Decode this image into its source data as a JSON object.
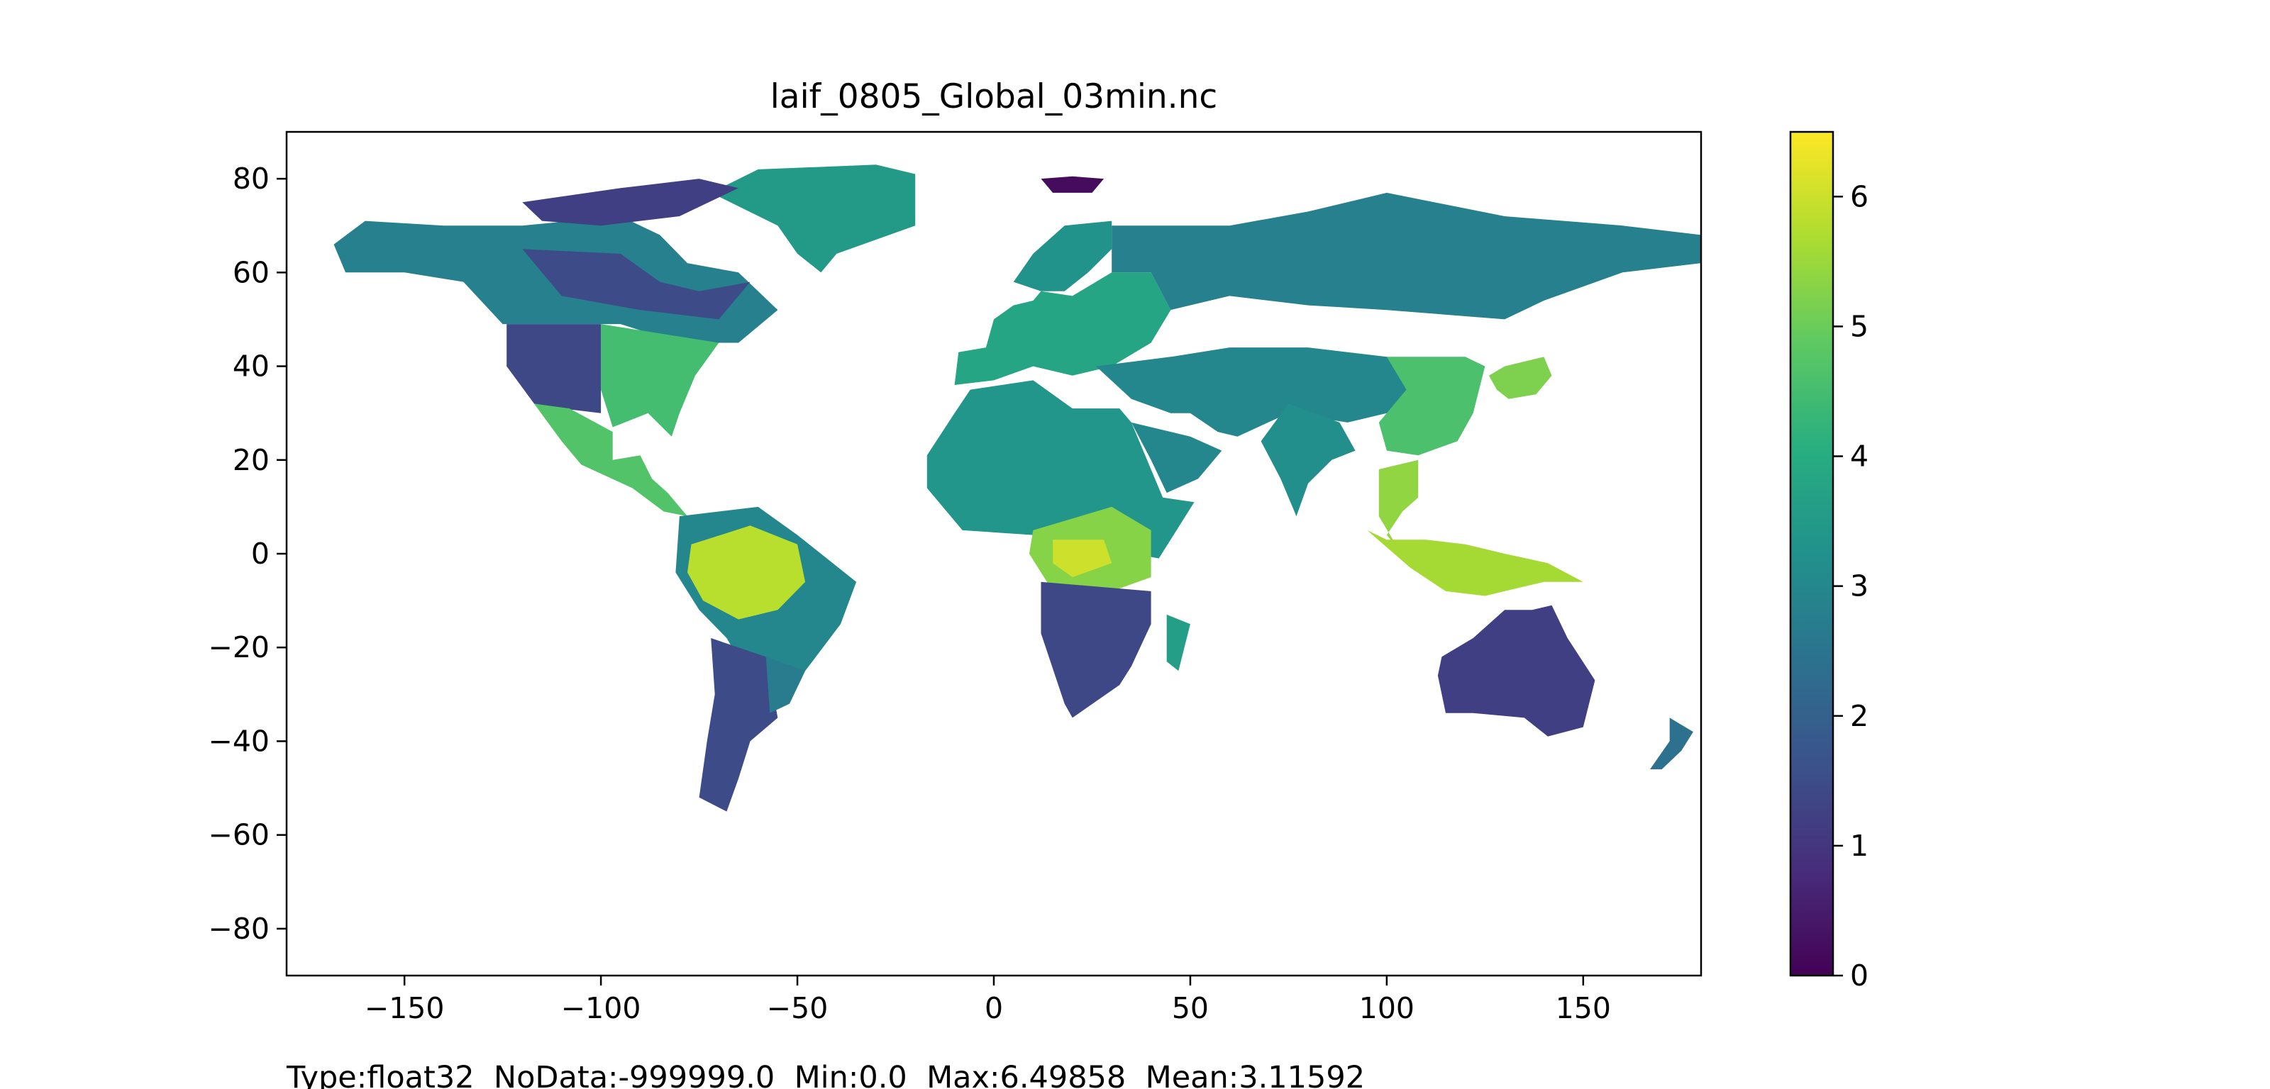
{
  "title": "laif_0805_Global_03min.nc",
  "stats_line": "Type:float32  NoData:-999999.0  Min:0.0  Max:6.49858  Mean:3.11592",
  "colorbar": {
    "colormap": "viridis",
    "min": 0,
    "max": 6.49858,
    "ticks": [
      "0",
      "1",
      "2",
      "3",
      "4",
      "5",
      "6"
    ],
    "tick_values": [
      0,
      1,
      2,
      3,
      4,
      5,
      6
    ]
  },
  "map": {
    "projection": "plate-carree",
    "xlim": [
      -180,
      180
    ],
    "ylim": [
      -90,
      90
    ],
    "x_ticks": [
      "−150",
      "−100",
      "−50",
      "0",
      "50",
      "100",
      "150"
    ],
    "x_tick_values": [
      -150,
      -100,
      -50,
      0,
      50,
      100,
      150
    ],
    "y_ticks": [
      "80",
      "60",
      "40",
      "20",
      "0",
      "−20",
      "−40",
      "−60",
      "−80"
    ],
    "y_tick_values": [
      80,
      60,
      40,
      20,
      0,
      -20,
      -40,
      -60,
      -80
    ],
    "nodata_color": "#ffffff"
  },
  "regions": [
    {
      "name": "greenland",
      "value": 3.5,
      "points": [
        [
          -60,
          82
        ],
        [
          -30,
          83
        ],
        [
          -20,
          81
        ],
        [
          -20,
          70
        ],
        [
          -40,
          64
        ],
        [
          -44,
          60
        ],
        [
          -50,
          64
        ],
        [
          -55,
          70
        ],
        [
          -72,
          77
        ]
      ]
    },
    {
      "name": "alaska-canada-north",
      "value": 2.8,
      "points": [
        [
          -168,
          66
        ],
        [
          -160,
          71
        ],
        [
          -140,
          70
        ],
        [
          -120,
          70
        ],
        [
          -95,
          72
        ],
        [
          -85,
          68
        ],
        [
          -78,
          62
        ],
        [
          -65,
          60
        ],
        [
          -55,
          52
        ],
        [
          -65,
          45
        ],
        [
          -80,
          45
        ],
        [
          -95,
          49
        ],
        [
          -125,
          49
        ],
        [
          -135,
          58
        ],
        [
          -150,
          60
        ],
        [
          -165,
          60
        ]
      ]
    },
    {
      "name": "canada-shield",
      "value": 1.5,
      "points": [
        [
          -120,
          65
        ],
        [
          -95,
          64
        ],
        [
          -85,
          58
        ],
        [
          -75,
          56
        ],
        [
          -62,
          58
        ],
        [
          -70,
          50
        ],
        [
          -90,
          52
        ],
        [
          -110,
          55
        ]
      ]
    },
    {
      "name": "canadian-arctic-islands",
      "value": 1.2,
      "points": [
        [
          -120,
          75
        ],
        [
          -95,
          78
        ],
        [
          -75,
          80
        ],
        [
          -65,
          78
        ],
        [
          -80,
          72
        ],
        [
          -100,
          70
        ],
        [
          -115,
          71
        ]
      ]
    },
    {
      "name": "usa-east",
      "value": 4.5,
      "points": [
        [
          -100,
          49
        ],
        [
          -70,
          45
        ],
        [
          -76,
          38
        ],
        [
          -80,
          30
        ],
        [
          -82,
          25
        ],
        [
          -88,
          30
        ],
        [
          -97,
          27
        ],
        [
          -100,
          35
        ]
      ]
    },
    {
      "name": "usa-west",
      "value": 1.4,
      "points": [
        [
          -124,
          49
        ],
        [
          -100,
          49
        ],
        [
          -100,
          30
        ],
        [
          -110,
          31
        ],
        [
          -117,
          32
        ],
        [
          -124,
          40
        ]
      ]
    },
    {
      "name": "mexico-central-america",
      "value": 4.7,
      "points": [
        [
          -117,
          32
        ],
        [
          -108,
          31
        ],
        [
          -97,
          26
        ],
        [
          -97,
          20
        ],
        [
          -90,
          21
        ],
        [
          -87,
          16
        ],
        [
          -83,
          13
        ],
        [
          -78,
          8
        ],
        [
          -84,
          9
        ],
        [
          -92,
          14
        ],
        [
          -105,
          19
        ],
        [
          -110,
          24
        ]
      ]
    },
    {
      "name": "south-america-north",
      "value": 3.0,
      "points": [
        [
          -80,
          8
        ],
        [
          -60,
          10
        ],
        [
          -50,
          4
        ],
        [
          -35,
          -6
        ],
        [
          -39,
          -15
        ],
        [
          -48,
          -25
        ],
        [
          -57,
          -34
        ],
        [
          -68,
          -18
        ],
        [
          -75,
          -12
        ],
        [
          -81,
          -4
        ]
      ]
    },
    {
      "name": "amazon",
      "value": 5.8,
      "points": [
        [
          -77,
          2
        ],
        [
          -62,
          6
        ],
        [
          -50,
          2
        ],
        [
          -48,
          -6
        ],
        [
          -55,
          -12
        ],
        [
          -65,
          -14
        ],
        [
          -74,
          -10
        ],
        [
          -78,
          -4
        ]
      ]
    },
    {
      "name": "south-america-south",
      "value": 1.5,
      "points": [
        [
          -72,
          -18
        ],
        [
          -58,
          -22
        ],
        [
          -55,
          -35
        ],
        [
          -62,
          -40
        ],
        [
          -65,
          -48
        ],
        [
          -68,
          -55
        ],
        [
          -75,
          -52
        ],
        [
          -73,
          -40
        ],
        [
          -71,
          -30
        ]
      ]
    },
    {
      "name": "south-america-southeast",
      "value": 2.7,
      "points": [
        [
          -58,
          -22
        ],
        [
          -48,
          -25
        ],
        [
          -52,
          -32
        ],
        [
          -57,
          -34
        ]
      ]
    },
    {
      "name": "africa-north",
      "value": 3.4,
      "points": [
        [
          -17,
          21
        ],
        [
          -10,
          30
        ],
        [
          -6,
          35
        ],
        [
          10,
          37
        ],
        [
          20,
          31
        ],
        [
          32,
          31
        ],
        [
          35,
          28
        ],
        [
          43,
          12
        ],
        [
          51,
          11
        ],
        [
          42,
          -1
        ],
        [
          10,
          4
        ],
        [
          -8,
          5
        ],
        [
          -17,
          14
        ]
      ]
    },
    {
      "name": "central-africa",
      "value": 5.3,
      "points": [
        [
          10,
          5
        ],
        [
          30,
          10
        ],
        [
          40,
          5
        ],
        [
          40,
          -5
        ],
        [
          30,
          -8
        ],
        [
          15,
          -8
        ],
        [
          9,
          0
        ]
      ]
    },
    {
      "name": "congo-basin",
      "value": 6.0,
      "points": [
        [
          15,
          3
        ],
        [
          28,
          3
        ],
        [
          30,
          -2
        ],
        [
          20,
          -5
        ],
        [
          15,
          -2
        ]
      ]
    },
    {
      "name": "africa-south",
      "value": 1.4,
      "points": [
        [
          12,
          -6
        ],
        [
          40,
          -8
        ],
        [
          40,
          -15
        ],
        [
          35,
          -24
        ],
        [
          32,
          -28
        ],
        [
          20,
          -35
        ],
        [
          18,
          -32
        ],
        [
          12,
          -17
        ]
      ]
    },
    {
      "name": "madagascar",
      "value": 3.6,
      "points": [
        [
          44,
          -13
        ],
        [
          50,
          -15
        ],
        [
          47,
          -25
        ],
        [
          44,
          -23
        ]
      ]
    },
    {
      "name": "europe",
      "value": 3.8,
      "points": [
        [
          -10,
          36
        ],
        [
          -9,
          43
        ],
        [
          -2,
          44
        ],
        [
          0,
          50
        ],
        [
          5,
          53
        ],
        [
          10,
          54
        ],
        [
          12,
          56
        ],
        [
          20,
          55
        ],
        [
          30,
          60
        ],
        [
          40,
          60
        ],
        [
          45,
          52
        ],
        [
          40,
          45
        ],
        [
          30,
          40
        ],
        [
          20,
          38
        ],
        [
          10,
          40
        ],
        [
          0,
          37
        ]
      ]
    },
    {
      "name": "scandinavia",
      "value": 3.3,
      "points": [
        [
          5,
          58
        ],
        [
          10,
          64
        ],
        [
          18,
          70
        ],
        [
          30,
          71
        ],
        [
          30,
          65
        ],
        [
          24,
          60
        ],
        [
          18,
          56
        ],
        [
          12,
          56
        ]
      ]
    },
    {
      "name": "siberia",
      "value": 2.8,
      "points": [
        [
          30,
          70
        ],
        [
          60,
          70
        ],
        [
          80,
          73
        ],
        [
          100,
          77
        ],
        [
          130,
          72
        ],
        [
          160,
          70
        ],
        [
          180,
          68
        ],
        [
          180,
          62
        ],
        [
          160,
          60
        ],
        [
          140,
          54
        ],
        [
          130,
          50
        ],
        [
          100,
          52
        ],
        [
          80,
          53
        ],
        [
          60,
          55
        ],
        [
          45,
          52
        ],
        [
          40,
          60
        ],
        [
          30,
          60
        ]
      ]
    },
    {
      "name": "middle-east-central-asia",
      "value": 3.0,
      "points": [
        [
          26,
          40
        ],
        [
          45,
          42
        ],
        [
          60,
          44
        ],
        [
          80,
          44
        ],
        [
          100,
          42
        ],
        [
          110,
          38
        ],
        [
          100,
          30
        ],
        [
          90,
          28
        ],
        [
          75,
          30
        ],
        [
          62,
          25
        ],
        [
          57,
          26
        ],
        [
          50,
          30
        ],
        [
          45,
          30
        ],
        [
          35,
          33
        ]
      ]
    },
    {
      "name": "arabia",
      "value": 3.0,
      "points": [
        [
          35,
          28
        ],
        [
          50,
          25
        ],
        [
          58,
          22
        ],
        [
          52,
          16
        ],
        [
          44,
          13
        ],
        [
          40,
          20
        ]
      ]
    },
    {
      "name": "india",
      "value": 3.2,
      "points": [
        [
          68,
          24
        ],
        [
          75,
          32
        ],
        [
          88,
          28
        ],
        [
          92,
          22
        ],
        [
          86,
          20
        ],
        [
          80,
          15
        ],
        [
          77,
          8
        ],
        [
          73,
          16
        ]
      ]
    },
    {
      "name": "china-east",
      "value": 4.6,
      "points": [
        [
          100,
          42
        ],
        [
          120,
          42
        ],
        [
          125,
          40
        ],
        [
          122,
          30
        ],
        [
          118,
          24
        ],
        [
          108,
          21
        ],
        [
          100,
          22
        ],
        [
          98,
          28
        ],
        [
          105,
          35
        ]
      ]
    },
    {
      "name": "korea-japan",
      "value": 5.2,
      "points": [
        [
          126,
          38
        ],
        [
          130,
          40
        ],
        [
          140,
          42
        ],
        [
          142,
          38
        ],
        [
          138,
          34
        ],
        [
          131,
          33
        ],
        [
          128,
          35
        ]
      ]
    },
    {
      "name": "southeast-asia",
      "value": 5.4,
      "points": [
        [
          98,
          18
        ],
        [
          108,
          20
        ],
        [
          108,
          12
        ],
        [
          104,
          9
        ],
        [
          100,
          4
        ],
        [
          103,
          1
        ],
        [
          98,
          8
        ]
      ]
    },
    {
      "name": "indonesia",
      "value": 5.6,
      "points": [
        [
          95,
          5
        ],
        [
          106,
          -3
        ],
        [
          115,
          -8
        ],
        [
          125,
          -9
        ],
        [
          140,
          -6
        ],
        [
          150,
          -6
        ],
        [
          141,
          -2
        ],
        [
          130,
          0
        ],
        [
          120,
          2
        ],
        [
          110,
          3
        ],
        [
          100,
          3
        ]
      ]
    },
    {
      "name": "australia",
      "value": 1.2,
      "points": [
        [
          114,
          -22
        ],
        [
          122,
          -18
        ],
        [
          130,
          -12
        ],
        [
          137,
          -12
        ],
        [
          142,
          -11
        ],
        [
          146,
          -18
        ],
        [
          153,
          -27
        ],
        [
          150,
          -37
        ],
        [
          141,
          -39
        ],
        [
          135,
          -35
        ],
        [
          122,
          -34
        ],
        [
          115,
          -34
        ],
        [
          113,
          -26
        ]
      ]
    },
    {
      "name": "new-zealand",
      "value": 2.4,
      "points": [
        [
          172,
          -35
        ],
        [
          178,
          -38
        ],
        [
          175,
          -42
        ],
        [
          170,
          -46
        ],
        [
          167,
          -46
        ],
        [
          172,
          -40
        ]
      ]
    },
    {
      "name": "svalbard",
      "value": 0.2,
      "points": [
        [
          12,
          80
        ],
        [
          20,
          80.5
        ],
        [
          28,
          80
        ],
        [
          25,
          77
        ],
        [
          15,
          77
        ]
      ]
    }
  ]
}
